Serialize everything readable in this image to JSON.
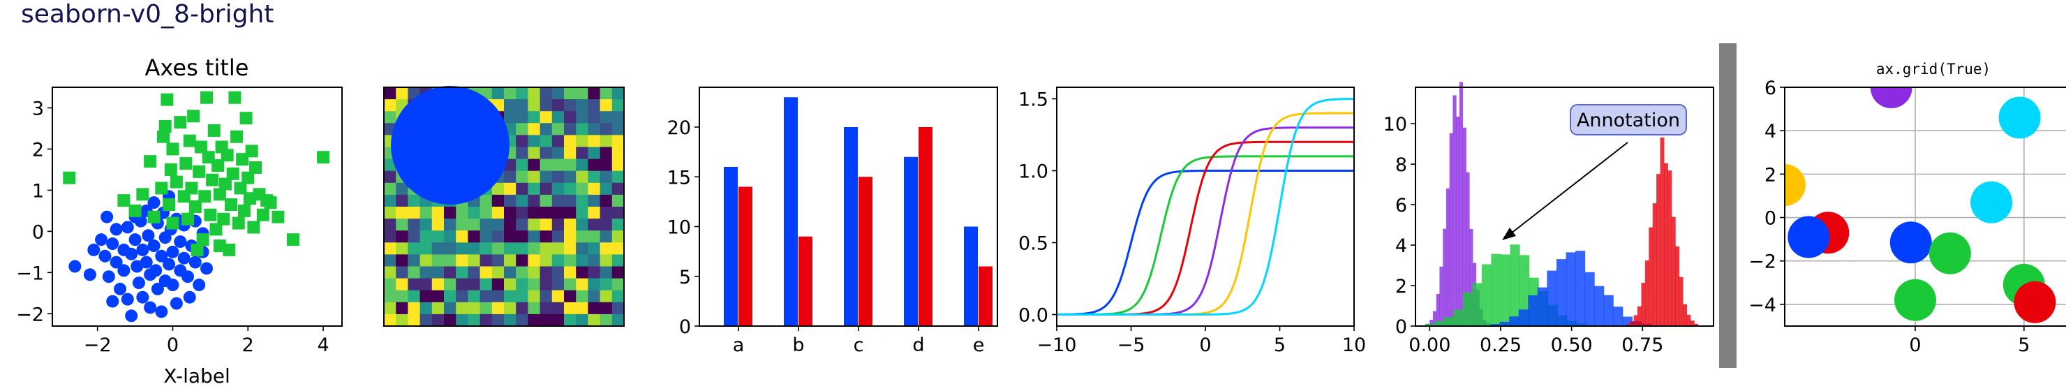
{
  "figure_title": "seaborn-v0_8-bright",
  "colors": {
    "blue": "#023eff",
    "red": "#e8000b",
    "green": "#1ac938",
    "purple": "#8b2be2",
    "yellow": "#ffc400",
    "cyan": "#00d7ff",
    "title_color": "#13134f",
    "scrollbar": "#808080"
  },
  "chart_data": [
    {
      "type": "scatter",
      "title": "Axes title",
      "xlabel": "X-label",
      "ylabel": "",
      "xlim": [
        -3.2,
        4.5
      ],
      "ylim": [
        -2.3,
        3.5
      ],
      "xticks": [
        -2,
        0,
        2,
        4
      ],
      "yticks": [
        -2,
        -1,
        0,
        1,
        2,
        3
      ],
      "series": [
        {
          "marker": "circle",
          "color": "#023eff",
          "points": [
            [
              -2.6,
              -0.85
            ],
            [
              -2.1,
              -0.45
            ],
            [
              -1.9,
              -0.2
            ],
            [
              -1.8,
              -0.6
            ],
            [
              -1.7,
              -1.1
            ],
            [
              -1.6,
              -0.3
            ],
            [
              -1.5,
              -0.75
            ],
            [
              -1.5,
              0.05
            ],
            [
              -1.4,
              -1.4
            ],
            [
              -1.3,
              -0.45
            ],
            [
              -1.3,
              -0.95
            ],
            [
              -1.2,
              0.1
            ],
            [
              -1.2,
              -1.65
            ],
            [
              -1.1,
              -0.55
            ],
            [
              -1.1,
              -2.05
            ],
            [
              -1.0,
              0.35
            ],
            [
              -1.0,
              -0.2
            ],
            [
              -0.95,
              -0.85
            ],
            [
              -0.9,
              -1.25
            ],
            [
              -0.85,
              0.25
            ],
            [
              -0.8,
              -0.45
            ],
            [
              -0.8,
              -1.6
            ],
            [
              -0.7,
              0.5
            ],
            [
              -0.7,
              -0.75
            ],
            [
              -0.65,
              -0.1
            ],
            [
              -0.6,
              -1.05
            ],
            [
              -0.6,
              -1.85
            ],
            [
              -0.5,
              0.7
            ],
            [
              -0.5,
              -0.35
            ],
            [
              -0.45,
              -0.95
            ],
            [
              -0.4,
              0.2
            ],
            [
              -0.4,
              -1.4
            ],
            [
              -0.3,
              -0.6
            ],
            [
              -0.25,
              0.45
            ],
            [
              -0.2,
              -0.15
            ],
            [
              -0.2,
              -1.2
            ],
            [
              -0.1,
              0.85
            ],
            [
              -0.1,
              -0.8
            ],
            [
              -0.05,
              0.05
            ],
            [
              0.0,
              -1.3
            ],
            [
              0.0,
              -0.5
            ],
            [
              0.1,
              0.3
            ],
            [
              0.1,
              -1.75
            ],
            [
              0.2,
              -0.25
            ],
            [
              0.2,
              -0.95
            ],
            [
              0.3,
              0.15
            ],
            [
              0.3,
              -0.65
            ],
            [
              0.4,
              -1.1
            ],
            [
              0.5,
              -0.35
            ],
            [
              0.6,
              -0.75
            ],
            [
              0.6,
              0.25
            ],
            [
              0.7,
              -1.3
            ],
            [
              0.8,
              -0.5
            ],
            [
              0.8,
              -0.05
            ],
            [
              0.9,
              -0.9
            ],
            [
              -1.6,
              -1.7
            ],
            [
              -0.3,
              -1.95
            ],
            [
              0.45,
              -1.6
            ],
            [
              -2.2,
              -1.05
            ],
            [
              -1.75,
              0.35
            ]
          ]
        },
        {
          "marker": "square",
          "color": "#1ac938",
          "points": [
            [
              -2.75,
              1.3
            ],
            [
              -1.3,
              0.75
            ],
            [
              -1.0,
              0.5
            ],
            [
              -0.8,
              0.9
            ],
            [
              -0.6,
              1.7
            ],
            [
              -0.5,
              0.35
            ],
            [
              -0.3,
              1.05
            ],
            [
              -0.25,
              2.3
            ],
            [
              -0.2,
              2.55
            ],
            [
              -0.15,
              3.2
            ],
            [
              -0.1,
              0.65
            ],
            [
              -0.05,
              1.5
            ],
            [
              0.0,
              2.0
            ],
            [
              0.0,
              0.2
            ],
            [
              0.1,
              1.2
            ],
            [
              0.2,
              2.65
            ],
            [
              0.3,
              0.85
            ],
            [
              0.35,
              1.65
            ],
            [
              0.4,
              0.3
            ],
            [
              0.45,
              2.2
            ],
            [
              0.5,
              1.05
            ],
            [
              0.55,
              2.8
            ],
            [
              0.6,
              0.6
            ],
            [
              0.7,
              1.45
            ],
            [
              0.75,
              2.05
            ],
            [
              0.8,
              -0.2
            ],
            [
              0.85,
              0.85
            ],
            [
              0.9,
              3.25
            ],
            [
              0.95,
              1.8
            ],
            [
              1.0,
              0.4
            ],
            [
              1.05,
              1.25
            ],
            [
              1.1,
              2.45
            ],
            [
              1.15,
              0.05
            ],
            [
              1.2,
              1.6
            ],
            [
              1.25,
              0.9
            ],
            [
              1.3,
              2.05
            ],
            [
              1.35,
              0.3
            ],
            [
              1.4,
              1.15
            ],
            [
              1.45,
              1.85
            ],
            [
              1.5,
              -0.45
            ],
            [
              1.55,
              0.65
            ],
            [
              1.6,
              1.4
            ],
            [
              1.65,
              3.25
            ],
            [
              1.7,
              2.3
            ],
            [
              1.75,
              0.2
            ],
            [
              1.8,
              1.05
            ],
            [
              1.85,
              1.75
            ],
            [
              1.9,
              0.5
            ],
            [
              1.95,
              2.75
            ],
            [
              2.0,
              1.3
            ],
            [
              2.05,
              0.8
            ],
            [
              2.1,
              1.95
            ],
            [
              2.15,
              0.1
            ],
            [
              2.2,
              1.55
            ],
            [
              2.3,
              0.9
            ],
            [
              2.4,
              0.4
            ],
            [
              2.5,
              0.75
            ],
            [
              2.6,
              0.7
            ],
            [
              2.8,
              0.35
            ],
            [
              3.2,
              -0.2
            ],
            [
              4.0,
              1.8
            ],
            [
              0.65,
              -0.45
            ],
            [
              1.25,
              -0.35
            ]
          ]
        }
      ]
    },
    {
      "type": "heatmap",
      "rows": 20,
      "cols": 20,
      "circle_color": "#023eff",
      "note": "random values 0-1 rendered with viridis-like palette"
    },
    {
      "type": "bar",
      "categories": [
        "a",
        "b",
        "c",
        "d",
        "e"
      ],
      "series": [
        {
          "color": "#023eff",
          "values": [
            16,
            23,
            20,
            17,
            10
          ]
        },
        {
          "color": "#e8000b",
          "values": [
            14,
            9,
            15,
            20,
            6
          ]
        }
      ],
      "ylim": [
        0,
        24
      ],
      "yticks": [
        0,
        5,
        10,
        15,
        20
      ]
    },
    {
      "type": "line",
      "xlim": [
        -10,
        10
      ],
      "ylim": [
        -0.08,
        1.58
      ],
      "xticks": [
        -10,
        -5,
        0,
        5,
        10
      ],
      "yticks": [
        0.0,
        0.5,
        1.0,
        1.5
      ],
      "series": [
        {
          "color": "#023eff",
          "center": -5,
          "height": 1.0
        },
        {
          "color": "#1ac938",
          "center": -3,
          "height": 1.1
        },
        {
          "color": "#e8000b",
          "center": -1,
          "height": 1.2
        },
        {
          "color": "#8b2be2",
          "center": 1,
          "height": 1.3
        },
        {
          "color": "#ffc400",
          "center": 3,
          "height": 1.4
        },
        {
          "color": "#00d7ff",
          "center": 5,
          "height": 1.5
        }
      ]
    },
    {
      "type": "histogram",
      "xlim": [
        -0.05,
        1.0
      ],
      "ylim": [
        0,
        11.8
      ],
      "xticks": [
        0.0,
        0.25,
        0.5,
        0.75
      ],
      "yticks": [
        0,
        2,
        4,
        6,
        8,
        10
      ],
      "annotation": {
        "text": "Annotation",
        "point": [
          0.25,
          4.5
        ]
      },
      "series": [
        {
          "color": "#8b2be2",
          "mean": 0.1,
          "sd": 0.035,
          "peak": 11.3
        },
        {
          "color": "#1ac938",
          "mean": 0.27,
          "sd": 0.1,
          "peak": 3.9
        },
        {
          "color": "#023eff",
          "mean": 0.5,
          "sd": 0.1,
          "peak": 3.5
        },
        {
          "color": "#e8000b",
          "mean": 0.82,
          "sd": 0.04,
          "peak": 8.4
        }
      ]
    },
    {
      "type": "scatter",
      "title": "ax.grid(True)",
      "xlim": [
        -6,
        7.7
      ],
      "ylim": [
        -5,
        6
      ],
      "xticks": [
        0,
        5
      ],
      "yticks": [
        -4,
        -2,
        0,
        2,
        4,
        6
      ],
      "grid": true,
      "points": [
        {
          "x": -1.1,
          "y": 6.0,
          "color": "#8b2be2"
        },
        {
          "x": 3.5,
          "y": 0.7,
          "color": "#00d7ff"
        },
        {
          "x": 4.8,
          "y": 4.6,
          "color": "#00d7ff"
        },
        {
          "x": -6.0,
          "y": 1.5,
          "color": "#ffc400"
        },
        {
          "x": -4.0,
          "y": -0.7,
          "color": "#e8000b"
        },
        {
          "x": -4.9,
          "y": -0.9,
          "color": "#023eff"
        },
        {
          "x": -0.2,
          "y": -1.15,
          "color": "#023eff"
        },
        {
          "x": 1.6,
          "y": -1.65,
          "color": "#1ac938"
        },
        {
          "x": 0.0,
          "y": -3.8,
          "color": "#1ac938"
        },
        {
          "x": 5.0,
          "y": -3.1,
          "color": "#1ac938"
        },
        {
          "x": 5.5,
          "y": -3.9,
          "color": "#e8000b"
        }
      ]
    }
  ]
}
